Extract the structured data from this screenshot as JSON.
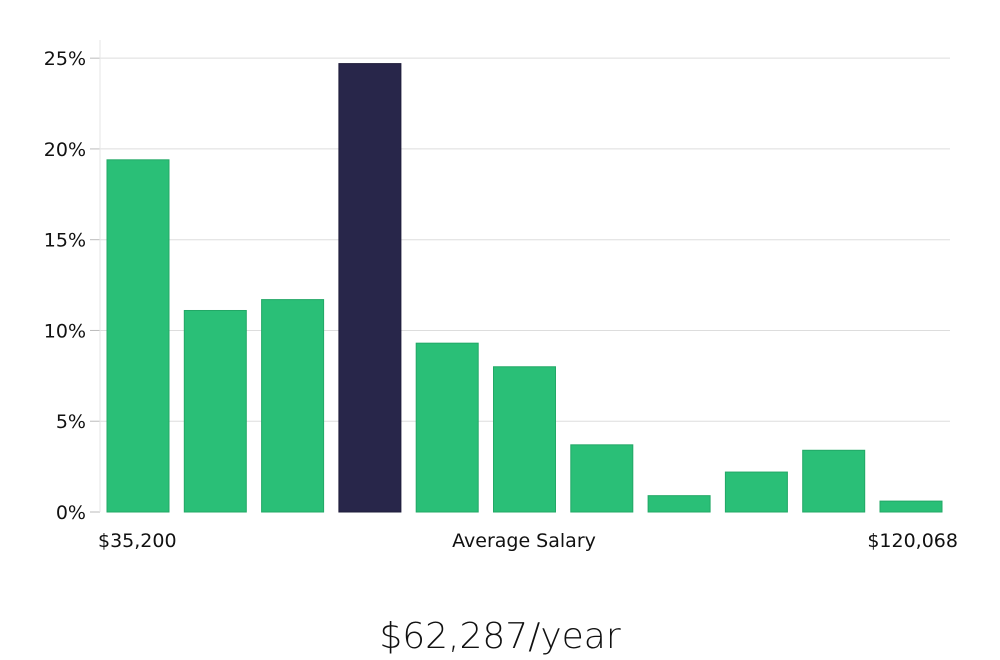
{
  "chart_data": {
    "type": "bar",
    "categories": [
      "",
      "",
      "",
      "",
      "",
      "",
      "",
      "",
      "",
      "",
      ""
    ],
    "values": [
      19.4,
      11.1,
      11.7,
      24.7,
      9.3,
      8.0,
      3.7,
      0.9,
      2.2,
      3.4,
      0.6
    ],
    "highlight_index": 3,
    "ylim": [
      0,
      26
    ],
    "yticks": [
      0,
      5,
      10,
      15,
      20,
      25
    ],
    "ytick_suffix": "%",
    "grid": true,
    "colors": {
      "bar": "#2abf77",
      "highlight": "#28264a",
      "grid": "#dddddd"
    },
    "x_axis_labels": {
      "min": "$35,200",
      "center": "Average Salary",
      "max": "$120,068"
    }
  },
  "headline": "$62,287/year"
}
